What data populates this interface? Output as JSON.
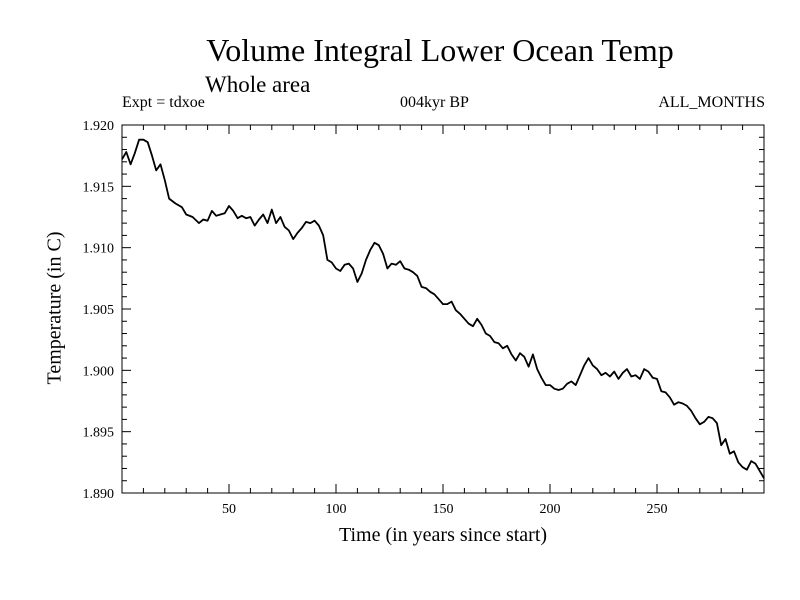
{
  "chart_data": {
    "type": "line",
    "title": "Volume Integral Lower Ocean Temp",
    "subtitle": "Whole area",
    "annotations": {
      "left": "Expt = tdxoe",
      "center": "004kyr BP",
      "right": "ALL_MONTHS"
    },
    "xlabel": "Time (in years since start)",
    "ylabel": "Temperature (in C)",
    "xlim": [
      0,
      300
    ],
    "ylim": [
      1.89,
      1.92
    ],
    "xticks": [
      50,
      100,
      150,
      200,
      250
    ],
    "yticks": [
      "1.890",
      "1.895",
      "1.900",
      "1.905",
      "1.910",
      "1.915",
      "1.920"
    ],
    "grid": false,
    "series": [
      {
        "x": [
          0,
          2,
          4,
          6,
          8,
          10,
          12,
          14,
          16,
          18,
          20,
          22,
          25,
          28,
          30,
          33,
          36,
          38,
          40,
          42,
          44,
          46,
          48,
          50,
          52,
          54,
          56,
          58,
          60,
          62,
          64,
          66,
          68,
          70,
          72,
          74,
          76,
          78,
          80,
          82,
          84,
          86,
          88,
          90,
          92,
          94,
          96,
          98,
          100,
          102,
          104,
          106,
          108,
          110,
          112,
          114,
          116,
          118,
          120,
          122,
          124,
          126,
          128,
          130,
          132,
          134,
          136,
          138,
          140,
          142,
          144,
          146,
          148,
          150,
          152,
          154,
          156,
          158,
          160,
          162,
          164,
          166,
          168,
          170,
          172,
          174,
          176,
          178,
          180,
          182,
          184,
          186,
          188,
          190,
          192,
          194,
          196,
          198,
          200,
          202,
          204,
          206,
          208,
          210,
          212,
          214,
          216,
          218,
          220,
          222,
          224,
          226,
          228,
          230,
          232,
          234,
          236,
          238,
          240,
          242,
          244,
          246,
          248,
          250,
          252,
          254,
          256,
          258,
          260,
          262,
          264,
          266,
          268,
          270,
          272,
          274,
          276,
          278,
          280,
          282,
          284,
          286,
          288,
          290,
          292,
          294,
          296,
          298,
          300
        ],
        "values": [
          1.9172,
          1.9178,
          1.9168,
          1.9177,
          1.9188,
          1.9188,
          1.9186,
          1.9175,
          1.9163,
          1.9168,
          1.9155,
          1.914,
          1.9136,
          1.9133,
          1.9127,
          1.9125,
          1.912,
          1.9123,
          1.9122,
          1.913,
          1.9126,
          1.9127,
          1.9128,
          1.9134,
          1.913,
          1.9124,
          1.9126,
          1.9124,
          1.9125,
          1.9118,
          1.9123,
          1.9127,
          1.912,
          1.9131,
          1.912,
          1.9125,
          1.9117,
          1.9114,
          1.9107,
          1.9112,
          1.9116,
          1.9121,
          1.912,
          1.9122,
          1.9118,
          1.911,
          1.909,
          1.9088,
          1.9083,
          1.9081,
          1.9086,
          1.9087,
          1.9083,
          1.9072,
          1.9079,
          1.909,
          1.9098,
          1.9104,
          1.9102,
          1.9095,
          1.9083,
          1.9087,
          1.9086,
          1.9089,
          1.9083,
          1.9082,
          1.908,
          1.9077,
          1.9068,
          1.9067,
          1.9064,
          1.9062,
          1.9058,
          1.9054,
          1.9054,
          1.9056,
          1.9049,
          1.9046,
          1.9042,
          1.9038,
          1.9036,
          1.9042,
          1.9037,
          1.903,
          1.9028,
          1.9023,
          1.9022,
          1.9018,
          1.902,
          1.9013,
          1.9008,
          1.9014,
          1.9011,
          1.9003,
          1.9013,
          1.9001,
          1.8994,
          1.8988,
          1.8988,
          1.8985,
          1.8984,
          1.8985,
          1.8989,
          1.8991,
          1.8988,
          1.8996,
          1.9004,
          1.901,
          1.9004,
          1.9001,
          1.8996,
          1.8998,
          1.8995,
          1.8999,
          1.8993,
          1.8998,
          1.9001,
          1.8995,
          1.8996,
          1.8993,
          1.9001,
          1.8999,
          1.8994,
          1.8993,
          1.8983,
          1.8982,
          1.8978,
          1.8972,
          1.8974,
          1.8973,
          1.8971,
          1.8967,
          1.8961,
          1.8956,
          1.8958,
          1.8962,
          1.8961,
          1.8957,
          1.8939,
          1.8944,
          1.8932,
          1.8934,
          1.8925,
          1.8921,
          1.8919,
          1.8926,
          1.8924,
          1.8918,
          1.8912
        ]
      }
    ]
  }
}
